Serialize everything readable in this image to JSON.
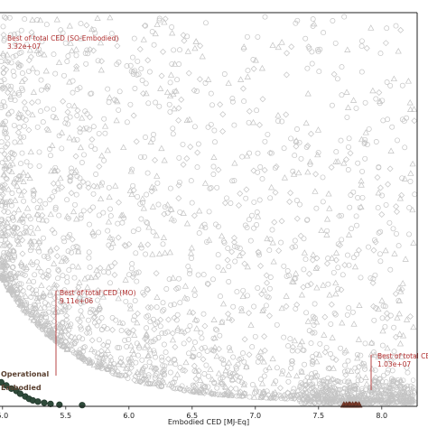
{
  "chart_data": {
    "type": "scatter",
    "xlabel": "Embodied CED [MJ-Eq]",
    "ylabel": "",
    "xlim": [
      4.98,
      8.28
    ],
    "ylim": [
      0,
      100
    ],
    "x_ticks": [
      {
        "value": 5.0,
        "label": "5.0"
      },
      {
        "value": 5.5,
        "label": "5.5"
      },
      {
        "value": 6.0,
        "label": "6.0"
      },
      {
        "value": 6.5,
        "label": "6.5"
      },
      {
        "value": 7.0,
        "label": "7.0"
      },
      {
        "value": 7.5,
        "label": "7.5"
      },
      {
        "value": 8.0,
        "label": "8.0"
      }
    ],
    "grid": false,
    "colors": {
      "cloud": "#c4c4c4",
      "operational_front": "#2e4a3a",
      "embodied_front": "#7a3a2a",
      "annotation": "#b03030",
      "axis": "#222222"
    },
    "markers": [
      "circle",
      "triangle",
      "diamond"
    ],
    "pareto_operational": [
      [
        4.99,
        6.1
      ],
      [
        5.03,
        5.3
      ],
      [
        5.07,
        4.5
      ],
      [
        5.11,
        3.9
      ],
      [
        5.14,
        3.2
      ],
      [
        5.18,
        2.5
      ],
      [
        5.21,
        1.9
      ],
      [
        5.24,
        1.5
      ],
      [
        5.28,
        1.2
      ],
      [
        5.33,
        0.9
      ],
      [
        5.38,
        0.6
      ],
      [
        5.45,
        0.4
      ],
      [
        5.63,
        0.3
      ]
    ],
    "pareto_embodied": [
      [
        7.7,
        0.4
      ],
      [
        7.72,
        0.4
      ],
      [
        7.74,
        0.4
      ],
      [
        7.75,
        0.4
      ],
      [
        7.77,
        0.4
      ],
      [
        7.79,
        0.4
      ],
      [
        7.8,
        0.4
      ],
      [
        7.82,
        0.4
      ]
    ],
    "annotations": [
      {
        "id": "so",
        "title": "Best of total CED (SO-Embodied)",
        "value": "3.32e+07",
        "x": 5.0,
        "y": 97
      },
      {
        "id": "mo",
        "title": "Best of total CED (MO)",
        "value": "9.11e+06",
        "x": 5.4,
        "y": 2.5
      },
      {
        "id": "emb",
        "title": "Best of total CE",
        "value": "1.03e+07",
        "x": 7.76,
        "y": 0.4
      }
    ],
    "legend": {
      "placement": "bottom-left",
      "entries": [
        "Operational",
        "Embodied"
      ]
    }
  }
}
